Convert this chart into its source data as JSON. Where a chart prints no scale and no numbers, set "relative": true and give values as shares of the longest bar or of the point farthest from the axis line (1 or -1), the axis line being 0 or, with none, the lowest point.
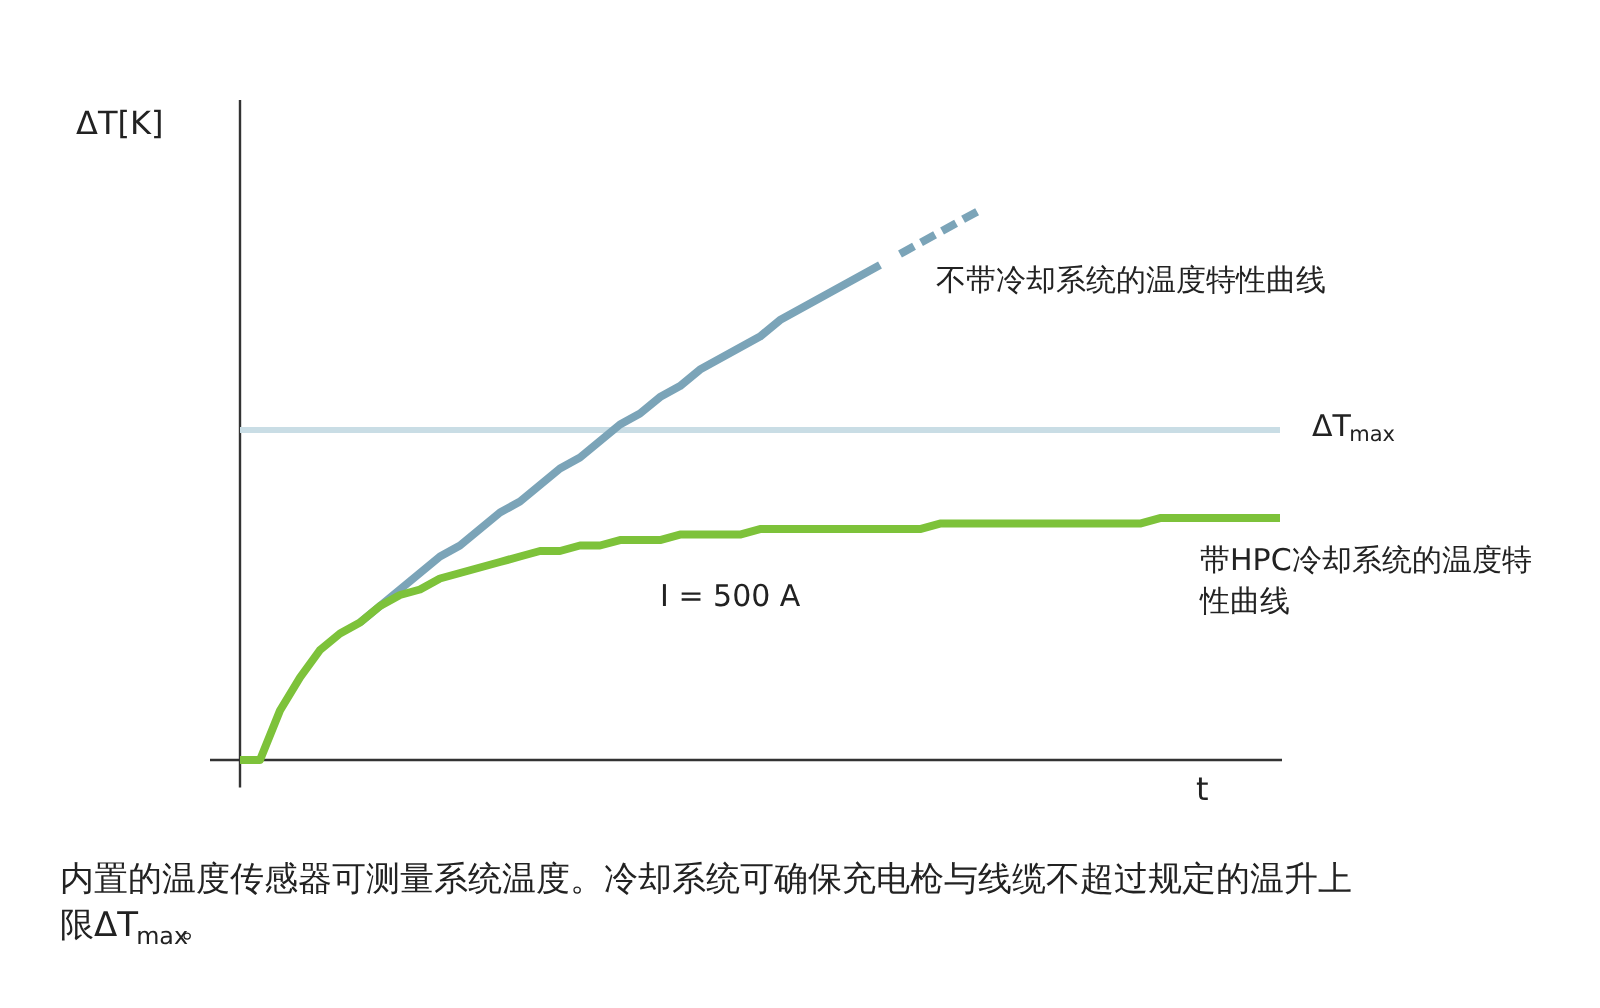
{
  "chart_data": {
    "type": "line",
    "relative": true,
    "xlabel": "t",
    "ylabel": "ΔT[K]",
    "categories": [
      null,
      null,
      null,
      null,
      null,
      null,
      null,
      null,
      null,
      null,
      null,
      null,
      null,
      null,
      null,
      null,
      null,
      null,
      null,
      null,
      null,
      null,
      null,
      null,
      null,
      null,
      null,
      null,
      null,
      null,
      null,
      null,
      null,
      null,
      null,
      null,
      null,
      null,
      null,
      null,
      null,
      null,
      null,
      null,
      null,
      null,
      null,
      null,
      null,
      null,
      null,
      null,
      null
    ],
    "series": [
      {
        "name": "不带冷却系统的温度特性曲线",
        "color": "#7ba4b8",
        "line_style": "solid",
        "values": [
          null,
          null,
          null,
          null,
          null,
          null,
          0.25,
          0.28,
          0.31,
          0.34,
          0.37,
          0.39,
          0.42,
          0.45,
          0.47,
          0.5,
          0.53,
          0.55,
          0.58,
          0.61,
          0.63,
          0.66,
          0.68,
          0.71,
          0.73,
          0.75,
          0.77,
          0.8,
          0.82,
          0.84,
          0.86,
          0.88,
          0.9,
          null,
          null,
          null,
          null,
          null,
          null,
          null,
          null,
          null,
          null,
          null,
          null,
          null,
          null,
          null,
          null,
          null,
          null,
          null,
          null
        ]
      },
      {
        "color": "#7ba4b8",
        "line_style": "dashed",
        "values": [
          null,
          null,
          null,
          null,
          null,
          null,
          null,
          null,
          null,
          null,
          null,
          null,
          null,
          null,
          null,
          null,
          null,
          null,
          null,
          null,
          null,
          null,
          null,
          null,
          null,
          null,
          null,
          null,
          null,
          null,
          null,
          null,
          null,
          0.92,
          0.94,
          0.96,
          0.98,
          1.0,
          null,
          null,
          null,
          null,
          null,
          null,
          null,
          null,
          null,
          null,
          null,
          null,
          null,
          null,
          null
        ]
      },
      {
        "name": "带HPC冷却系统的温度特性曲线",
        "color": "#7dc23a",
        "line_style": "solid",
        "values": [
          0,
          0,
          0.09,
          0.15,
          0.2,
          0.23,
          0.25,
          0.28,
          0.3,
          0.31,
          0.33,
          0.34,
          0.35,
          0.36,
          0.37,
          0.38,
          0.38,
          0.39,
          0.39,
          0.4,
          0.4,
          0.4,
          0.41,
          0.41,
          0.41,
          0.41,
          0.42,
          0.42,
          0.42,
          0.42,
          0.42,
          0.42,
          0.42,
          0.42,
          0.42,
          0.43,
          0.43,
          0.43,
          0.43,
          0.43,
          0.43,
          0.43,
          0.43,
          0.43,
          0.43,
          0.43,
          0.44,
          0.44,
          0.44,
          0.44,
          0.44,
          0.44,
          0.44
        ]
      }
    ],
    "ref_lines": [
      {
        "axis": "y",
        "value": 0.6,
        "label": "ΔT$_{max}$",
        "color": "#c9dde5"
      }
    ],
    "annotations": [
      "I = 500 A",
      "内置的温度传感器可测量系统温度。冷却系统可确保充电枪与线缆不超过规定的温升上限ΔT$_{max}$。"
    ],
    "grid": false,
    "legend": false,
    "marker": "none"
  }
}
